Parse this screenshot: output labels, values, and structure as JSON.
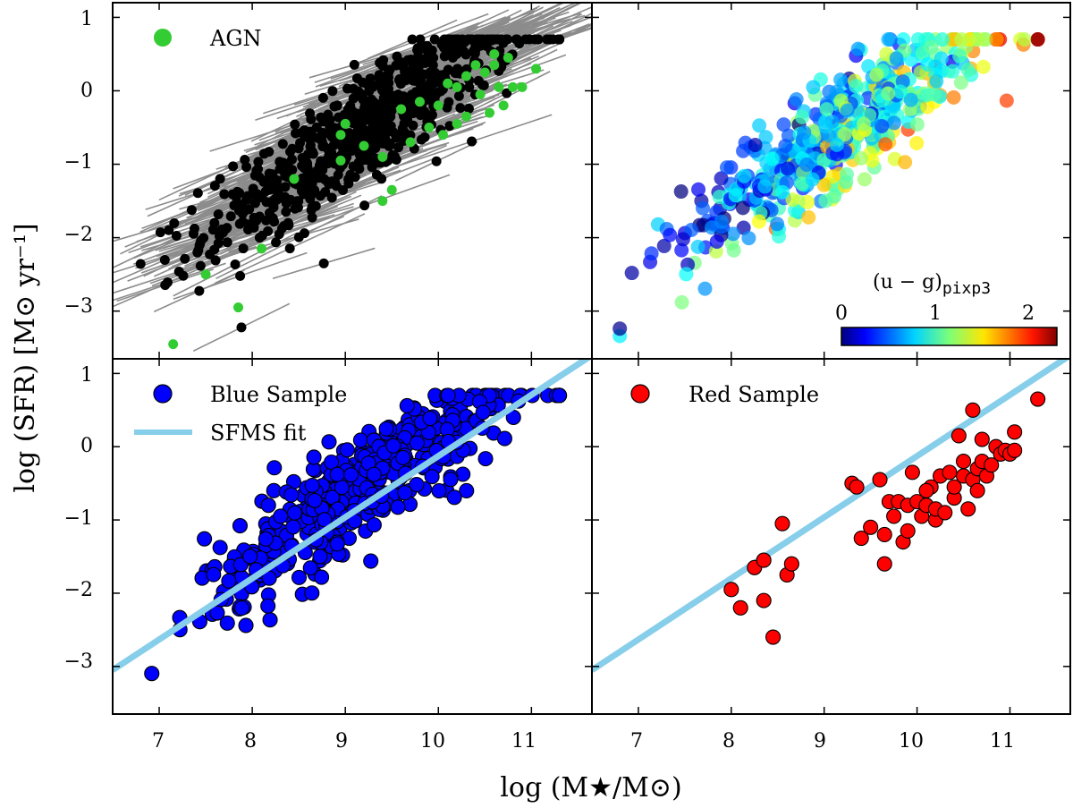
{
  "chart_data": {
    "type": "scatter",
    "layout": "2x2 grid sharing axes",
    "xlabel": "log (M★/M⊙)",
    "ylabel": "log (SFR) [M⊙ yr⁻¹]",
    "xlim": [
      6.5,
      11.65
    ],
    "ylim": [
      -3.65,
      1.2
    ],
    "xticks": [
      7,
      8,
      9,
      10,
      11
    ],
    "yticks": [
      -3,
      -2,
      -1,
      0,
      1
    ],
    "xtick_labels": [
      "7",
      "8",
      "9",
      "10",
      "11"
    ],
    "ytick_labels": [
      "−3",
      "−2",
      "−1",
      "0",
      "1"
    ],
    "panels": [
      {
        "id": "top-left",
        "legend": [
          {
            "label": "AGN",
            "color": "#33cc33"
          }
        ],
        "series": [
          {
            "name": "galaxies",
            "color": "#000000",
            "marker": "circle",
            "error_bars": true,
            "count_points": 700,
            "distribution": "sfms"
          },
          {
            "name": "AGN",
            "color": "#33cc33",
            "marker": "circle",
            "points": [
              [
                7.15,
                -3.45
              ],
              [
                7.5,
                -2.5
              ],
              [
                7.85,
                -2.95
              ],
              [
                8.1,
                -2.15
              ],
              [
                8.45,
                -1.2
              ],
              [
                8.95,
                -0.6
              ],
              [
                9.2,
                -0.75
              ],
              [
                9.4,
                -0.9
              ],
              [
                9.4,
                -1.5
              ],
              [
                9.5,
                -1.35
              ],
              [
                9.6,
                -0.25
              ],
              [
                9.7,
                -0.7
              ],
              [
                9.8,
                -0.15
              ],
              [
                9.9,
                -0.5
              ],
              [
                10.0,
                -0.2
              ],
              [
                10.05,
                -0.6
              ],
              [
                10.1,
                0.1
              ],
              [
                10.2,
                -0.45
              ],
              [
                10.2,
                0.05
              ],
              [
                10.3,
                0.2
              ],
              [
                10.3,
                -0.35
              ],
              [
                10.4,
                0.35
              ],
              [
                10.45,
                -0.05
              ],
              [
                10.5,
                0.25
              ],
              [
                10.55,
                -0.3
              ],
              [
                10.6,
                0.5
              ],
              [
                10.6,
                0.35
              ],
              [
                10.65,
                0.05
              ],
              [
                10.7,
                -0.2
              ],
              [
                10.75,
                0.45
              ],
              [
                10.8,
                0.05
              ],
              [
                10.9,
                0.05
              ],
              [
                11.05,
                0.3
              ],
              [
                9.0,
                -0.45
              ],
              [
                8.95,
                -0.95
              ]
            ]
          }
        ]
      },
      {
        "id": "top-right",
        "series": [
          {
            "name": "color-coded",
            "marker": "circle",
            "colormap": "jet",
            "color_quantity": "(u-g)pixp3",
            "count_points": 520,
            "distribution": "sfms"
          }
        ],
        "colorbar": {
          "title": "(u − g)",
          "title_subscript": "pixp3",
          "range": [
            0,
            2.3
          ],
          "ticks": [
            0,
            1,
            2
          ],
          "tick_labels": [
            "0",
            "1",
            "2"
          ]
        }
      },
      {
        "id": "bottom-left",
        "legend": [
          {
            "label": "Blue Sample",
            "color": "#0000ff",
            "marker": "circle"
          },
          {
            "label": "SFMS fit",
            "color": "#87ceeb",
            "marker": "line"
          }
        ],
        "series": [
          {
            "name": "Blue Sample",
            "color": "#0000ff",
            "marker": "circle",
            "count_points": 460,
            "distribution": "sfms"
          },
          {
            "name": "SFMS fit",
            "type": "line",
            "color": "#87ceeb",
            "x": [
              6.5,
              11.65
            ],
            "y": [
              -3.05,
              1.25
            ]
          }
        ]
      },
      {
        "id": "bottom-right",
        "legend": [
          {
            "label": "Red Sample",
            "color": "#ff0000",
            "marker": "circle"
          }
        ],
        "series": [
          {
            "name": "Red Sample",
            "color": "#ff0000",
            "marker": "circle",
            "points": [
              [
                8.0,
                -1.95
              ],
              [
                8.1,
                -2.2
              ],
              [
                8.25,
                -1.65
              ],
              [
                8.35,
                -1.55
              ],
              [
                8.35,
                -2.1
              ],
              [
                8.45,
                -2.6
              ],
              [
                8.55,
                -1.05
              ],
              [
                8.6,
                -1.75
              ],
              [
                8.65,
                -1.6
              ],
              [
                9.3,
                -0.5
              ],
              [
                9.35,
                -0.55
              ],
              [
                9.4,
                -1.25
              ],
              [
                9.5,
                -1.1
              ],
              [
                9.6,
                -0.45
              ],
              [
                9.65,
                -1.2
              ],
              [
                9.65,
                -1.6
              ],
              [
                9.7,
                -0.75
              ],
              [
                9.75,
                -0.95
              ],
              [
                9.8,
                -0.75
              ],
              [
                9.85,
                -1.3
              ],
              [
                9.9,
                -1.15
              ],
              [
                9.9,
                -0.8
              ],
              [
                10.0,
                -0.75
              ],
              [
                10.05,
                -0.95
              ],
              [
                10.1,
                -0.8
              ],
              [
                10.15,
                -0.55
              ],
              [
                10.2,
                -1.0
              ],
              [
                10.2,
                -0.85
              ],
              [
                10.25,
                -0.4
              ],
              [
                10.3,
                -0.9
              ],
              [
                10.35,
                -0.35
              ],
              [
                10.4,
                -0.7
              ],
              [
                10.4,
                -0.55
              ],
              [
                10.45,
                0.15
              ],
              [
                10.5,
                -0.4
              ],
              [
                10.5,
                -0.2
              ],
              [
                10.55,
                -0.85
              ],
              [
                10.6,
                -0.45
              ],
              [
                10.6,
                0.5
              ],
              [
                10.65,
                -0.3
              ],
              [
                10.7,
                -0.2
              ],
              [
                10.7,
                0.1
              ],
              [
                10.75,
                -0.4
              ],
              [
                10.8,
                -0.25
              ],
              [
                10.85,
                0.0
              ],
              [
                10.9,
                -0.1
              ],
              [
                10.95,
                -0.05
              ],
              [
                11.0,
                -0.1
              ],
              [
                11.05,
                0.2
              ],
              [
                11.05,
                -0.05
              ],
              [
                11.3,
                0.65
              ],
              [
                10.65,
                -0.6
              ],
              [
                10.1,
                -0.6
              ],
              [
                9.95,
                -0.35
              ]
            ]
          },
          {
            "name": "SFMS fit",
            "type": "line",
            "color": "#87ceeb",
            "x": [
              6.5,
              11.65
            ],
            "y": [
              -3.05,
              1.25
            ]
          }
        ]
      }
    ]
  }
}
